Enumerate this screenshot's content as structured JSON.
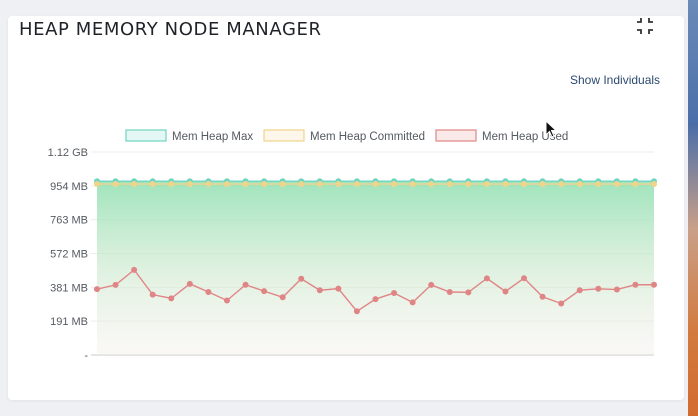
{
  "widget": {
    "title": "HEAP MEMORY NODE MANAGER",
    "show_individuals_label": "Show Individuals",
    "collapse_icon": "collapse-icon"
  },
  "chart_data": {
    "type": "line",
    "yticks": [
      "1.12 GB",
      "954 MB",
      "763 MB",
      "572 MB",
      "381 MB",
      "191 MB",
      "-"
    ],
    "ylim_mb": [
      0,
      1147
    ],
    "grid": true,
    "legend_placement": "top",
    "series": [
      {
        "name": "Mem Heap Max",
        "color": "#6fd5c3",
        "values": [
          982,
          982,
          982,
          982,
          982,
          982,
          982,
          982,
          982,
          982,
          982,
          982,
          982,
          982,
          982,
          982,
          982,
          982,
          982,
          982,
          982,
          982,
          982,
          982,
          982,
          982,
          982,
          982,
          982,
          982,
          982
        ]
      },
      {
        "name": "Mem Heap Committed",
        "color": "#f0d48a",
        "values": [
          966,
          966,
          966,
          966,
          966,
          966,
          966,
          966,
          966,
          966,
          966,
          966,
          966,
          966,
          966,
          966,
          966,
          966,
          966,
          966,
          966,
          966,
          966,
          966,
          966,
          966,
          966,
          966,
          966,
          966,
          966
        ]
      },
      {
        "name": "Mem Heap Used",
        "color": "#e08585",
        "values": [
          372,
          396,
          481,
          341,
          320,
          402,
          356,
          308,
          397,
          361,
          326,
          431,
          366,
          375,
          247,
          316,
          350,
          297,
          396,
          356,
          354,
          433,
          359,
          434,
          329,
          291,
          366,
          374,
          370,
          397,
          397
        ]
      }
    ]
  }
}
